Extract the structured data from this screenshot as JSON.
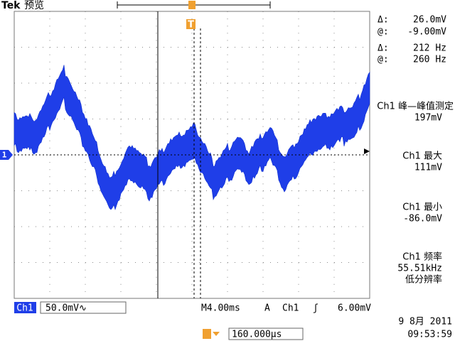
{
  "header": {
    "brand": "Tek",
    "mode": "预览"
  },
  "markers": {
    "channel": "1",
    "trigger": "T"
  },
  "cursor_readout": [
    {
      "symbol": "Δ:",
      "value": "26.0mV"
    },
    {
      "symbol": "@:",
      "value": "-9.00mV"
    },
    {
      "symbol": "Δ:",
      "value": "212 Hz"
    },
    {
      "symbol": "@:",
      "value": "260 Hz"
    }
  ],
  "measurements": [
    {
      "label": "Ch1 峰—峰值测定",
      "value": "197mV"
    },
    {
      "label": "Ch1 最大",
      "value": "111mV"
    },
    {
      "label": "Ch1 最小",
      "value": "-86.0mV"
    },
    {
      "label": "Ch1 频率",
      "value": "55.51kHz",
      "note": "低分辨率"
    }
  ],
  "status_bar": {
    "channel": "Ch1",
    "scale": "50.0mV∿",
    "timebase": "M4.00ms",
    "trigger_mode": "A",
    "trigger_channel": "Ch1",
    "trigger_slope": "ʃ",
    "trigger_level": "6.00mV"
  },
  "date": "9 8月  2011",
  "time": "09:53:59",
  "trigger_position": "160.000µs"
}
